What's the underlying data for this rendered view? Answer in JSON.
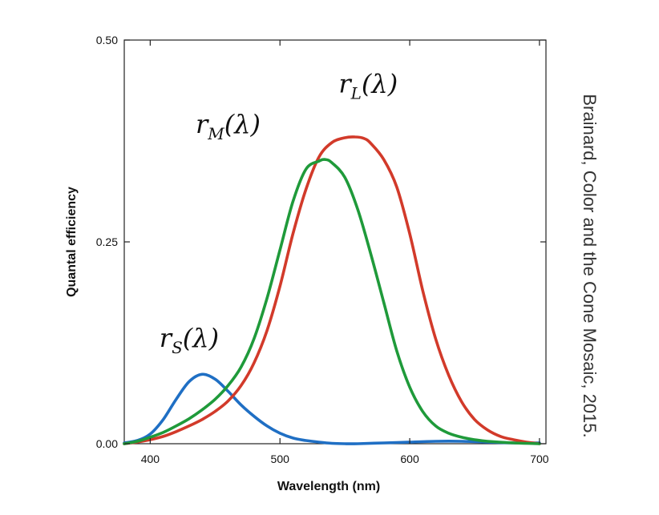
{
  "chart_data": {
    "type": "line",
    "xlabel": "Wavelength (nm)",
    "ylabel": "Quantal efficiency",
    "xlim": [
      380,
      705
    ],
    "ylim": [
      0,
      0.5
    ],
    "x_ticks": [
      "400",
      "500",
      "600",
      "700"
    ],
    "y_ticks": [
      "0.00",
      "0.25",
      "0.50"
    ],
    "grid": false,
    "series": [
      {
        "name": "r_S(λ)",
        "color": "#1f6fc4",
        "x": [
          380,
          390,
          400,
          410,
          420,
          430,
          440,
          450,
          460,
          470,
          480,
          490,
          500,
          510,
          520,
          530,
          540,
          550,
          560,
          580,
          600,
          620,
          640,
          660,
          680,
          700
        ],
        "y": [
          0.001,
          0.004,
          0.012,
          0.03,
          0.055,
          0.077,
          0.086,
          0.08,
          0.065,
          0.048,
          0.034,
          0.022,
          0.013,
          0.007,
          0.004,
          0.002,
          0.0005,
          0.0,
          0.0,
          0.001,
          0.002,
          0.003,
          0.003,
          0.002,
          0.001,
          0.001
        ]
      },
      {
        "name": "r_M(λ)",
        "color": "#1f9a3a",
        "x": [
          380,
          390,
          400,
          410,
          420,
          430,
          440,
          450,
          460,
          470,
          480,
          490,
          500,
          510,
          520,
          530,
          535,
          540,
          550,
          560,
          570,
          580,
          590,
          600,
          610,
          620,
          630,
          640,
          650,
          660,
          680,
          700
        ],
        "y": [
          0.0,
          0.003,
          0.008,
          0.014,
          0.022,
          0.031,
          0.042,
          0.055,
          0.072,
          0.095,
          0.13,
          0.18,
          0.24,
          0.3,
          0.34,
          0.35,
          0.352,
          0.348,
          0.33,
          0.29,
          0.235,
          0.175,
          0.115,
          0.07,
          0.04,
          0.022,
          0.013,
          0.008,
          0.005,
          0.003,
          0.001,
          0.0
        ]
      },
      {
        "name": "r_L(λ)",
        "color": "#d23a2a",
        "x": [
          380,
          390,
          400,
          410,
          420,
          430,
          440,
          450,
          460,
          470,
          480,
          490,
          500,
          510,
          520,
          530,
          540,
          550,
          558,
          565,
          570,
          580,
          590,
          600,
          610,
          620,
          630,
          640,
          650,
          660,
          670,
          680,
          690,
          700
        ],
        "y": [
          0.0,
          0.002,
          0.005,
          0.009,
          0.015,
          0.022,
          0.03,
          0.04,
          0.053,
          0.072,
          0.1,
          0.14,
          0.195,
          0.26,
          0.315,
          0.355,
          0.373,
          0.379,
          0.38,
          0.378,
          0.372,
          0.352,
          0.318,
          0.26,
          0.19,
          0.13,
          0.085,
          0.052,
          0.03,
          0.017,
          0.009,
          0.005,
          0.002,
          0.0
        ]
      }
    ],
    "annotations": [
      {
        "base": "r",
        "sub": "L",
        "arg": "(λ)",
        "x": 568,
        "y": 0.435
      },
      {
        "base": "r",
        "sub": "M",
        "arg": "(λ)",
        "x": 460,
        "y": 0.385
      },
      {
        "base": "r",
        "sub": "S",
        "arg": "(λ)",
        "x": 430,
        "y": 0.12
      }
    ]
  },
  "credit": "Brainard, Color and the Cone Mosaic, 2015."
}
